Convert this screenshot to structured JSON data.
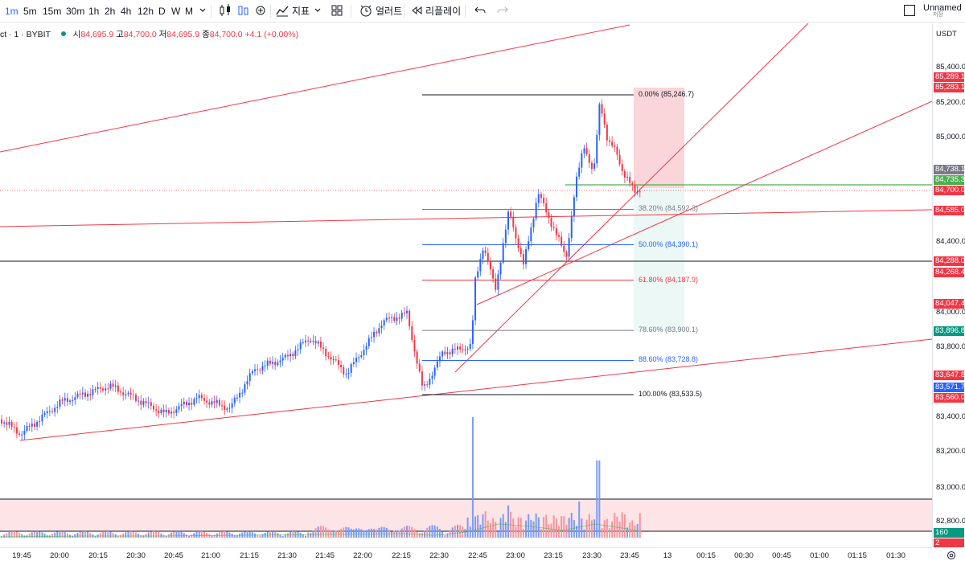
{
  "toolbar": {
    "intervals": [
      "1m",
      "5m",
      "15m",
      "30m",
      "1h",
      "2h",
      "4h",
      "12h",
      "D",
      "W",
      "M"
    ],
    "indicators_label": "지표",
    "alert_label": "얼러트",
    "replay_label": "리플레이",
    "layout_name": "Unnamed",
    "layout_status": "저장"
  },
  "legend": {
    "symbol": "ct · 1 · BYBIT",
    "o_label": "시",
    "o_value": "84,695.9",
    "h_label": "고",
    "h_value": "84,700.0",
    "l_label": "저",
    "l_value": "84,695.9",
    "c_label": "종",
    "c_value": "84,700.0",
    "change": "+4.1 (+0.00%)"
  },
  "price_scale": {
    "currency": "USDT",
    "ticks": [
      "85,400.0",
      "85,200.0",
      "85,000.0",
      "84,400.0",
      "84,000.0",
      "83,800.0",
      "83,400.0",
      "83,200.0",
      "83,000.0",
      "82,800.0"
    ],
    "labels": [
      {
        "text": "85,289.1",
        "color": "#f23645"
      },
      {
        "text": "85,283.1",
        "color": "#f23645"
      },
      {
        "text": "84,738.1",
        "color": "#787b86"
      },
      {
        "text": "84,735.3",
        "color": "#4caf50"
      },
      {
        "text": "84,700.0",
        "color": "#f23645"
      },
      {
        "text": "84,585.0",
        "color": "#f23645"
      },
      {
        "text": "84,288.0",
        "color": "#f23645"
      },
      {
        "text": "84,268.4",
        "color": "#f23645"
      },
      {
        "text": "84,047.4",
        "color": "#f23645"
      },
      {
        "text": "83,896.8",
        "color": "#089981"
      },
      {
        "text": "83,647.8",
        "color": "#f23645"
      },
      {
        "text": "83,571.7",
        "color": "#2962ff"
      },
      {
        "text": "83,560.0",
        "color": "#f23645"
      },
      {
        "text": "160",
        "color": "#089981"
      },
      {
        "text": "2",
        "color": "#f23645"
      }
    ]
  },
  "time_scale": {
    "labels": [
      "19:45",
      "20:00",
      "20:15",
      "20:30",
      "20:45",
      "21:00",
      "21:15",
      "21:30",
      "21:45",
      "22:00",
      "22:15",
      "22:30",
      "22:45",
      "23:00",
      "23:15",
      "23:30",
      "23:45",
      "13",
      "00:15",
      "00:30",
      "00:45",
      "01:00",
      "01:15",
      "01:30"
    ]
  },
  "fib_levels": [
    {
      "text": "0.00% (85,246.7)",
      "price": 85246.7,
      "color": "#131722"
    },
    {
      "text": "38.20% (84,592.3)",
      "price": 84592.3,
      "color": "#787b86"
    },
    {
      "text": "50.00% (84,390.1)",
      "price": 84390.1,
      "color": "#2962ff"
    },
    {
      "text": "61.80% (84,187.9)",
      "price": 84187.9,
      "color": "#f23645"
    },
    {
      "text": "78.60% (83,900.1)",
      "price": 83900.1,
      "color": "#787b86"
    },
    {
      "text": "88.60% (83,728.8)",
      "price": 83728.8,
      "color": "#2962ff"
    },
    {
      "text": "100.00% (83,533.5)",
      "price": 83533.5,
      "color": "#131722"
    }
  ],
  "colors": {
    "up": "#089981",
    "down": "#f23645",
    "candle_up": "#2962ff",
    "candle_down": "#f23645",
    "trendline": "#f23645",
    "current_price_line": "#4caf50"
  }
}
